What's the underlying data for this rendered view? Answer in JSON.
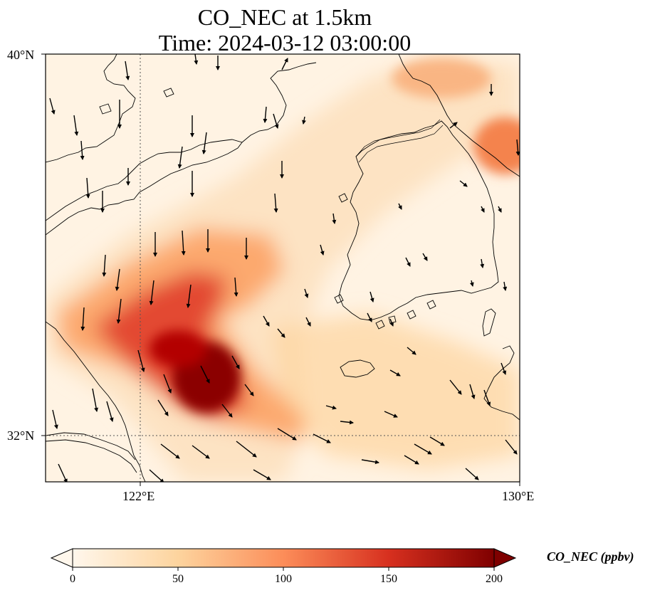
{
  "title": {
    "line1": "CO_NEC at 1.5km",
    "line2": "Time: 2024-03-12 03:00:00"
  },
  "axes": {
    "lat_ticks": [
      "40°N",
      "32°N"
    ],
    "lon_ticks": [
      "122°E",
      "130°E"
    ],
    "lat_range": [
      31,
      40
    ],
    "lon_range": [
      120,
      130
    ],
    "gridlines": "dotted at 32°N and 122°E"
  },
  "colorbar": {
    "title": "CO_NEC (ppbv)",
    "ticks": [
      "0",
      "50",
      "100",
      "150",
      "200"
    ],
    "range": [
      0,
      200
    ],
    "cmap": "OrRd",
    "colors": [
      "#fff7ec",
      "#fdd49e",
      "#fc8d59",
      "#d7301f",
      "#7f0000"
    ],
    "extend": "both"
  },
  "chart_data": {
    "type": "heatmap",
    "variable": "CO_NEC",
    "units": "ppbv",
    "plume_axis": [
      {
        "lon": 120.5,
        "lat": 34.0,
        "value": 110
      },
      {
        "lon": 121.5,
        "lat": 33.6,
        "value": 140
      },
      {
        "lon": 122.3,
        "lat": 33.2,
        "value": 175
      },
      {
        "lon": 123.0,
        "lat": 32.8,
        "value": 205
      },
      {
        "lon": 123.6,
        "lat": 32.5,
        "value": 200
      },
      {
        "lon": 124.3,
        "lat": 32.2,
        "value": 140
      },
      {
        "lon": 125.0,
        "lat": 31.9,
        "value": 110
      },
      {
        "lon": 122.5,
        "lat": 34.2,
        "value": 120
      },
      {
        "lon": 123.5,
        "lat": 35.0,
        "value": 90
      },
      {
        "lon": 129.5,
        "lat": 37.5,
        "value": 100
      },
      {
        "lon": 127.8,
        "lat": 39.5,
        "value": 80
      }
    ]
  }
}
